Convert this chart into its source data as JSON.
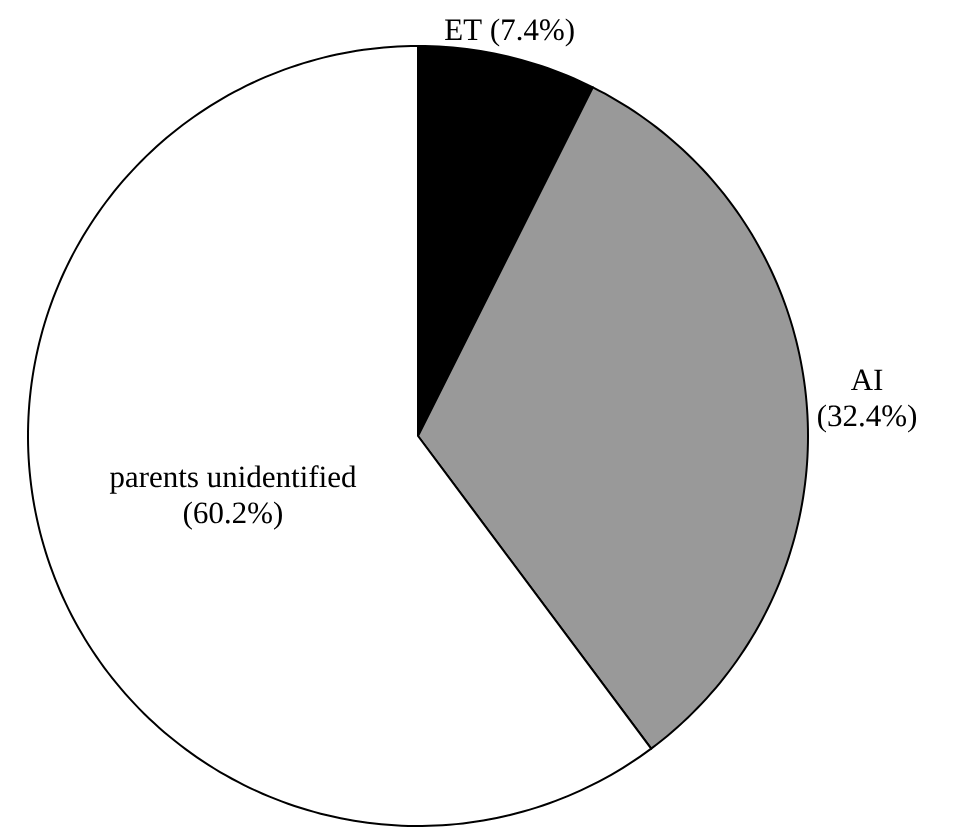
{
  "chart_data": {
    "type": "pie",
    "categories": [
      "ET",
      "AI",
      "parents unidentified"
    ],
    "values": [
      7.4,
      32.4,
      60.2
    ],
    "colors": [
      "#000000",
      "#999999",
      "#ffffff"
    ],
    "value_labels": [
      "(7.4%)",
      "(32.4%)",
      "(60.2%)"
    ]
  }
}
